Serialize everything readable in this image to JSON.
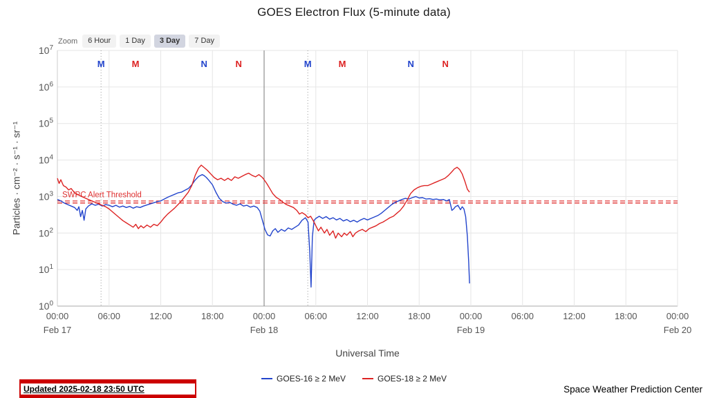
{
  "title": "GOES Electron Flux (5-minute data)",
  "zoom": {
    "label": "Zoom",
    "options": [
      "6 Hour",
      "1 Day",
      "3 Day",
      "7 Day"
    ],
    "selected": "3 Day"
  },
  "footer": {
    "updated": "Updated 2025-02-18 23:50 UTC",
    "credit": "Space Weather Prediction Center"
  },
  "chart_data": {
    "type": "line",
    "title": "GOES Electron Flux (5-minute data)",
    "xlabel": "Universal Time",
    "ylabel": "Particles · cm⁻² · s⁻¹ · sr⁻¹",
    "y_scale": "log10",
    "y_base": "10",
    "y_exponents": [
      0,
      1,
      2,
      3,
      4,
      5,
      6,
      7
    ],
    "y_exp_range": [
      0,
      7
    ],
    "x_range": [
      0,
      72
    ],
    "grid": true,
    "legend_position": "bottom",
    "x_ticks": [
      {
        "t": 0,
        "label": "00:00"
      },
      {
        "t": 6,
        "label": "06:00"
      },
      {
        "t": 12,
        "label": "12:00"
      },
      {
        "t": 18,
        "label": "18:00"
      },
      {
        "t": 24,
        "label": "00:00"
      },
      {
        "t": 30,
        "label": "06:00"
      },
      {
        "t": 36,
        "label": "12:00"
      },
      {
        "t": 42,
        "label": "18:00"
      },
      {
        "t": 48,
        "label": "00:00"
      },
      {
        "t": 54,
        "label": "06:00"
      },
      {
        "t": 60,
        "label": "12:00"
      },
      {
        "t": 66,
        "label": "18:00"
      },
      {
        "t": 72,
        "label": "00:00"
      }
    ],
    "x_dates": [
      {
        "t": 0,
        "label": "Feb 17"
      },
      {
        "t": 24,
        "label": "Feb 18"
      },
      {
        "t": 48,
        "label": "Feb 19"
      },
      {
        "t": 72,
        "label": "Feb 20"
      }
    ],
    "threshold": {
      "label": "SWPC Alert Threshold",
      "log10_value": 2.85,
      "color": "#e03030"
    },
    "event_markers": [
      {
        "t": 5.07,
        "label": "M",
        "color": "#2244cc"
      },
      {
        "t": 9.07,
        "label": "M",
        "color": "#dd2222"
      },
      {
        "t": 17.03,
        "label": "N",
        "color": "#2244cc"
      },
      {
        "t": 21.05,
        "label": "N",
        "color": "#dd2222"
      },
      {
        "t": 29.07,
        "label": "M",
        "color": "#2244cc"
      },
      {
        "t": 33.07,
        "label": "M",
        "color": "#dd2222"
      },
      {
        "t": 41.03,
        "label": "N",
        "color": "#2244cc"
      },
      {
        "t": 45.05,
        "label": "N",
        "color": "#dd2222"
      }
    ],
    "vlines": [
      {
        "t": 24,
        "style": "solid"
      },
      {
        "t": 5.07,
        "style": "dotted"
      },
      {
        "t": 29.07,
        "style": "dotted"
      }
    ],
    "series": [
      {
        "name": "GOES-16 ≥ 2 MeV",
        "color": "#2244cc",
        "points": [
          [
            0,
            2.92
          ],
          [
            0.4,
            2.88
          ],
          [
            0.8,
            2.82
          ],
          [
            1.2,
            2.78
          ],
          [
            1.6,
            2.74
          ],
          [
            2,
            2.7
          ],
          [
            2.3,
            2.62
          ],
          [
            2.5,
            2.72
          ],
          [
            2.7,
            2.45
          ],
          [
            2.9,
            2.62
          ],
          [
            3.1,
            2.35
          ],
          [
            3.3,
            2.66
          ],
          [
            3.6,
            2.74
          ],
          [
            4,
            2.8
          ],
          [
            4.4,
            2.76
          ],
          [
            4.8,
            2.79
          ],
          [
            5.2,
            2.74
          ],
          [
            5.6,
            2.78
          ],
          [
            6,
            2.76
          ],
          [
            6.4,
            2.72
          ],
          [
            6.8,
            2.76
          ],
          [
            7.2,
            2.71
          ],
          [
            7.6,
            2.74
          ],
          [
            8,
            2.7
          ],
          [
            8.4,
            2.73
          ],
          [
            8.8,
            2.68
          ],
          [
            9.2,
            2.72
          ],
          [
            9.6,
            2.7
          ],
          [
            10,
            2.74
          ],
          [
            10.4,
            2.77
          ],
          [
            10.8,
            2.8
          ],
          [
            11.2,
            2.83
          ],
          [
            11.6,
            2.86
          ],
          [
            12,
            2.88
          ],
          [
            12.4,
            2.93
          ],
          [
            12.8,
            2.98
          ],
          [
            13.2,
            3.02
          ],
          [
            13.6,
            3.06
          ],
          [
            14,
            3.1
          ],
          [
            14.4,
            3.12
          ],
          [
            14.8,
            3.17
          ],
          [
            15.2,
            3.22
          ],
          [
            15.6,
            3.32
          ],
          [
            16,
            3.45
          ],
          [
            16.4,
            3.55
          ],
          [
            16.8,
            3.6
          ],
          [
            17,
            3.58
          ],
          [
            17.3,
            3.52
          ],
          [
            17.6,
            3.44
          ],
          [
            18,
            3.32
          ],
          [
            18.4,
            3.12
          ],
          [
            18.8,
            2.95
          ],
          [
            19.2,
            2.86
          ],
          [
            19.6,
            2.82
          ],
          [
            20,
            2.84
          ],
          [
            20.4,
            2.79
          ],
          [
            20.8,
            2.76
          ],
          [
            21.2,
            2.8
          ],
          [
            21.6,
            2.74
          ],
          [
            22,
            2.76
          ],
          [
            22.4,
            2.71
          ],
          [
            22.8,
            2.74
          ],
          [
            23.2,
            2.7
          ],
          [
            23.5,
            2.6
          ],
          [
            23.8,
            2.35
          ],
          [
            24.1,
            2.1
          ],
          [
            24.4,
            1.95
          ],
          [
            24.7,
            1.92
          ],
          [
            25,
            2.06
          ],
          [
            25.3,
            2.12
          ],
          [
            25.6,
            2.02
          ],
          [
            26,
            2.1
          ],
          [
            26.4,
            2.05
          ],
          [
            26.8,
            2.14
          ],
          [
            27.2,
            2.1
          ],
          [
            27.6,
            2.16
          ],
          [
            28,
            2.22
          ],
          [
            28.4,
            2.35
          ],
          [
            28.8,
            2.42
          ],
          [
            29.1,
            2.3
          ],
          [
            29.3,
            1.5
          ],
          [
            29.45,
            0.52
          ],
          [
            29.6,
            1.9
          ],
          [
            29.8,
            2.35
          ],
          [
            30,
            2.4
          ],
          [
            30.4,
            2.46
          ],
          [
            30.8,
            2.4
          ],
          [
            31.2,
            2.45
          ],
          [
            31.6,
            2.38
          ],
          [
            32,
            2.42
          ],
          [
            32.4,
            2.36
          ],
          [
            32.8,
            2.4
          ],
          [
            33.2,
            2.33
          ],
          [
            33.6,
            2.37
          ],
          [
            34,
            2.31
          ],
          [
            34.4,
            2.35
          ],
          [
            34.8,
            2.3
          ],
          [
            35.2,
            2.36
          ],
          [
            35.6,
            2.4
          ],
          [
            36,
            2.36
          ],
          [
            36.4,
            2.4
          ],
          [
            36.8,
            2.44
          ],
          [
            37.2,
            2.48
          ],
          [
            37.6,
            2.54
          ],
          [
            38,
            2.62
          ],
          [
            38.4,
            2.7
          ],
          [
            38.8,
            2.78
          ],
          [
            39.2,
            2.84
          ],
          [
            39.6,
            2.88
          ],
          [
            40,
            2.92
          ],
          [
            40.4,
            2.95
          ],
          [
            40.8,
            2.93
          ],
          [
            41.2,
            2.97
          ],
          [
            41.6,
            3
          ],
          [
            42,
            2.96
          ],
          [
            42.4,
            2.97
          ],
          [
            42.8,
            2.93
          ],
          [
            43.2,
            2.94
          ],
          [
            43.6,
            2.92
          ],
          [
            44,
            2.93
          ],
          [
            44.4,
            2.91
          ],
          [
            44.8,
            2.92
          ],
          [
            45.2,
            2.88
          ],
          [
            45.5,
            2.92
          ],
          [
            45.8,
            2.62
          ],
          [
            46,
            2.66
          ],
          [
            46.2,
            2.72
          ],
          [
            46.5,
            2.76
          ],
          [
            46.8,
            2.64
          ],
          [
            47,
            2.72
          ],
          [
            47.2,
            2.66
          ],
          [
            47.4,
            2.45
          ],
          [
            47.6,
            1.9
          ],
          [
            47.75,
            1.2
          ],
          [
            47.85,
            0.62
          ]
        ]
      },
      {
        "name": "GOES-18 ≥ 2 MeV",
        "color": "#dd2222",
        "points": [
          [
            0,
            3.5
          ],
          [
            0.2,
            3.36
          ],
          [
            0.4,
            3.46
          ],
          [
            0.7,
            3.3
          ],
          [
            1,
            3.26
          ],
          [
            1.3,
            3.18
          ],
          [
            1.6,
            3.22
          ],
          [
            2,
            3.1
          ],
          [
            2.4,
            3.05
          ],
          [
            2.8,
            3
          ],
          [
            3.2,
            2.96
          ],
          [
            3.6,
            2.92
          ],
          [
            4,
            2.88
          ],
          [
            4.4,
            2.84
          ],
          [
            4.8,
            2.8
          ],
          [
            5.2,
            2.76
          ],
          [
            5.6,
            2.72
          ],
          [
            6,
            2.66
          ],
          [
            6.4,
            2.58
          ],
          [
            6.8,
            2.5
          ],
          [
            7.2,
            2.42
          ],
          [
            7.6,
            2.34
          ],
          [
            8,
            2.28
          ],
          [
            8.4,
            2.22
          ],
          [
            8.8,
            2.16
          ],
          [
            9.1,
            2.24
          ],
          [
            9.4,
            2.12
          ],
          [
            9.7,
            2.2
          ],
          [
            10,
            2.14
          ],
          [
            10.4,
            2.22
          ],
          [
            10.8,
            2.16
          ],
          [
            11.2,
            2.24
          ],
          [
            11.6,
            2.2
          ],
          [
            12,
            2.3
          ],
          [
            12.4,
            2.42
          ],
          [
            12.8,
            2.52
          ],
          [
            13.2,
            2.6
          ],
          [
            13.6,
            2.68
          ],
          [
            14,
            2.78
          ],
          [
            14.4,
            2.88
          ],
          [
            14.8,
            3
          ],
          [
            15.2,
            3.12
          ],
          [
            15.6,
            3.3
          ],
          [
            16,
            3.58
          ],
          [
            16.4,
            3.78
          ],
          [
            16.7,
            3.86
          ],
          [
            17,
            3.8
          ],
          [
            17.4,
            3.72
          ],
          [
            17.8,
            3.62
          ],
          [
            18.2,
            3.52
          ],
          [
            18.6,
            3.46
          ],
          [
            19,
            3.5
          ],
          [
            19.4,
            3.44
          ],
          [
            19.8,
            3.5
          ],
          [
            20.2,
            3.44
          ],
          [
            20.6,
            3.54
          ],
          [
            21,
            3.5
          ],
          [
            21.4,
            3.55
          ],
          [
            21.8,
            3.6
          ],
          [
            22.2,
            3.64
          ],
          [
            22.6,
            3.58
          ],
          [
            23,
            3.54
          ],
          [
            23.4,
            3.6
          ],
          [
            23.8,
            3.52
          ],
          [
            24,
            3.46
          ],
          [
            24.3,
            3.36
          ],
          [
            24.6,
            3.24
          ],
          [
            25,
            3.08
          ],
          [
            25.4,
            2.98
          ],
          [
            25.8,
            2.92
          ],
          [
            26.2,
            2.84
          ],
          [
            26.6,
            2.78
          ],
          [
            27,
            2.74
          ],
          [
            27.4,
            2.7
          ],
          [
            27.8,
            2.62
          ],
          [
            28.1,
            2.52
          ],
          [
            28.4,
            2.56
          ],
          [
            28.8,
            2.5
          ],
          [
            29.1,
            2.42
          ],
          [
            29.4,
            2.46
          ],
          [
            29.7,
            2.34
          ],
          [
            30,
            2.2
          ],
          [
            30.3,
            2.06
          ],
          [
            30.6,
            2.16
          ],
          [
            31,
            2
          ],
          [
            31.3,
            2.1
          ],
          [
            31.6,
            1.94
          ],
          [
            32,
            2.06
          ],
          [
            32.3,
            1.86
          ],
          [
            32.6,
            2
          ],
          [
            33,
            1.9
          ],
          [
            33.3,
            2
          ],
          [
            33.6,
            1.94
          ],
          [
            34,
            2.04
          ],
          [
            34.3,
            1.9
          ],
          [
            34.6,
            2
          ],
          [
            35,
            2.06
          ],
          [
            35.4,
            2.1
          ],
          [
            35.8,
            2.04
          ],
          [
            36.2,
            2.12
          ],
          [
            36.6,
            2.16
          ],
          [
            37,
            2.2
          ],
          [
            37.4,
            2.26
          ],
          [
            37.8,
            2.3
          ],
          [
            38.2,
            2.36
          ],
          [
            38.6,
            2.42
          ],
          [
            39,
            2.46
          ],
          [
            39.4,
            2.54
          ],
          [
            39.8,
            2.62
          ],
          [
            40.2,
            2.74
          ],
          [
            40.6,
            2.9
          ],
          [
            41,
            3.08
          ],
          [
            41.4,
            3.18
          ],
          [
            41.8,
            3.24
          ],
          [
            42.2,
            3.28
          ],
          [
            42.6,
            3.3
          ],
          [
            43,
            3.3
          ],
          [
            43.4,
            3.34
          ],
          [
            43.8,
            3.38
          ],
          [
            44.2,
            3.42
          ],
          [
            44.6,
            3.46
          ],
          [
            45,
            3.5
          ],
          [
            45.4,
            3.58
          ],
          [
            45.8,
            3.68
          ],
          [
            46.1,
            3.76
          ],
          [
            46.4,
            3.8
          ],
          [
            46.7,
            3.74
          ],
          [
            47,
            3.62
          ],
          [
            47.3,
            3.42
          ],
          [
            47.6,
            3.2
          ],
          [
            47.85,
            3.12
          ]
        ]
      }
    ]
  }
}
